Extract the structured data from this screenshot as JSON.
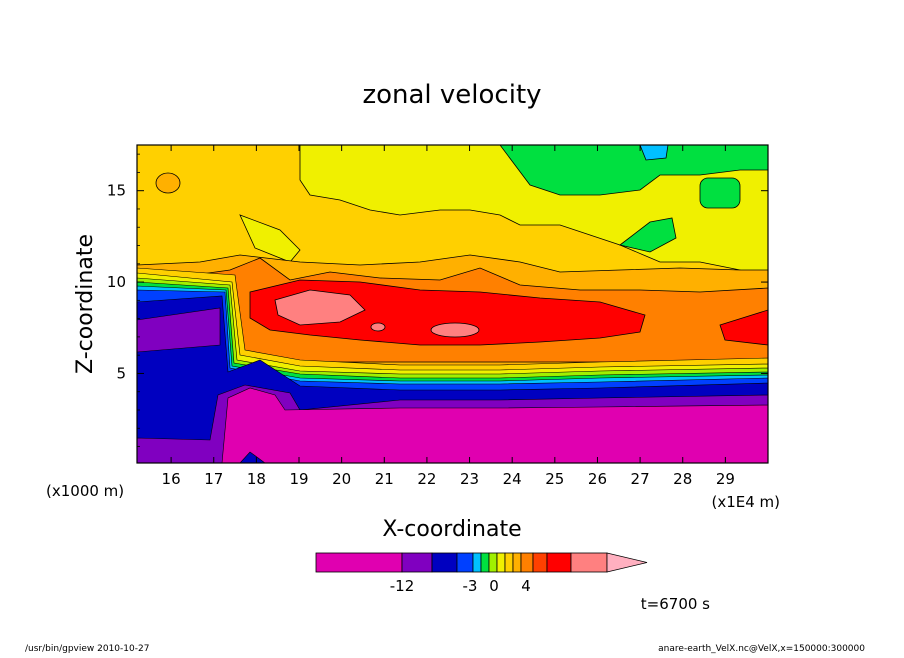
{
  "chart_data": {
    "type": "heatmap",
    "title": "zonal velocity",
    "xlabel": "X-coordinate",
    "ylabel": "Z-coordinate",
    "x_unit_left": "(x1000 m)",
    "x_unit_right": "(x1E4 m)",
    "x_ticks": [
      "16",
      "17",
      "18",
      "19",
      "20",
      "21",
      "22",
      "23",
      "24",
      "25",
      "26",
      "27",
      "28",
      "29"
    ],
    "y_ticks": [
      "5",
      "10",
      "15"
    ],
    "xlim": [
      15.2,
      30.0
    ],
    "ylim": [
      0.1,
      17.5
    ],
    "colorbar_ticks": [
      "-12",
      "-3",
      "0",
      "4"
    ],
    "colorbar_colors": [
      "#e000b0",
      "#8000c0",
      "#0000c0",
      "#0040ff",
      "#00c0ff",
      "#00e040",
      "#a0f000",
      "#f0f000",
      "#ffd000",
      "#ffb000",
      "#ff8000",
      "#ff4000",
      "#ff0000",
      "#ff8080",
      "#ffb0c0"
    ],
    "colors": {
      "magenta": "#e000b0",
      "purple": "#8000c0",
      "navy": "#0000c0",
      "blue": "#0040ff",
      "cyan": "#00c0ff",
      "green": "#00e040",
      "yellow_green": "#a0f000",
      "yellow": "#f0f000",
      "gold": "#ffd000",
      "orange_light": "#ffb000",
      "orange": "#ff8000",
      "red": "#ff0000",
      "pink": "#ff8080"
    },
    "time_label": "t=6700 s"
  },
  "footer": {
    "left": "/usr/bin/gpview   2010-10-27",
    "right": "anare-earth_VelX.nc@VelX,x=150000:300000"
  }
}
